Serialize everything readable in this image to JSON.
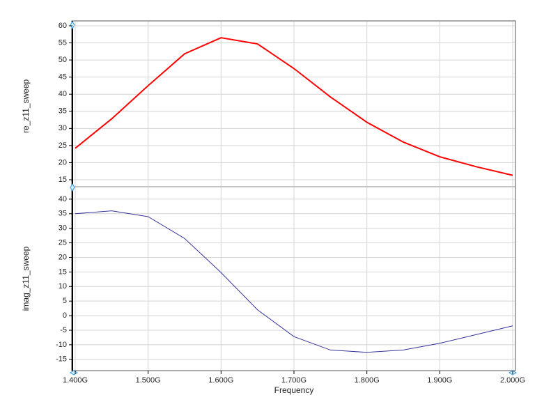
{
  "chart_data": [
    {
      "type": "line",
      "ylabel": "re_z11_sweep",
      "x": [
        1.4,
        1.45,
        1.5,
        1.55,
        1.6,
        1.65,
        1.7,
        1.75,
        1.8,
        1.85,
        1.9,
        1.95,
        2.0
      ],
      "series": [
        {
          "name": "re_z11_sweep",
          "color": "#ff0000",
          "values": [
            24.2,
            32.8,
            42.5,
            51.8,
            56.5,
            54.7,
            47.5,
            39.2,
            31.8,
            26.0,
            21.7,
            18.8,
            16.3
          ]
        }
      ],
      "xlim": [
        1.4,
        2.0
      ],
      "ylim": [
        13,
        60
      ],
      "yticks": [
        15,
        20,
        25,
        30,
        35,
        40,
        45,
        50,
        55,
        60
      ],
      "grid": true
    },
    {
      "type": "line",
      "ylabel": "imag_z11_sweep",
      "xlabel": "Frequency",
      "x": [
        1.4,
        1.45,
        1.5,
        1.55,
        1.6,
        1.65,
        1.7,
        1.75,
        1.8,
        1.85,
        1.9,
        1.95,
        2.0
      ],
      "series": [
        {
          "name": "imag_z11_sweep",
          "color": "#333399",
          "values": [
            35,
            36,
            34,
            26.5,
            14.8,
            2,
            -7.2,
            -11.8,
            -12.6,
            -11.8,
            -9.5,
            -6.5,
            -3.5
          ]
        }
      ],
      "xlim": [
        1.4,
        2.0
      ],
      "xticks": [
        {
          "value": 1.4,
          "label": "1.400G"
        },
        {
          "value": 1.5,
          "label": "1.500G"
        },
        {
          "value": 1.6,
          "label": "1.600G"
        },
        {
          "value": 1.7,
          "label": "1.700G"
        },
        {
          "value": 1.8,
          "label": "1.800G"
        },
        {
          "value": 1.9,
          "label": "1.900G"
        },
        {
          "value": 2.0,
          "label": "2.000G"
        }
      ],
      "ylim": [
        -18.4,
        43.8
      ],
      "yticks": [
        -15,
        -10,
        -5,
        0,
        5,
        10,
        15,
        20,
        25,
        30,
        35,
        40
      ],
      "grid": true
    }
  ]
}
